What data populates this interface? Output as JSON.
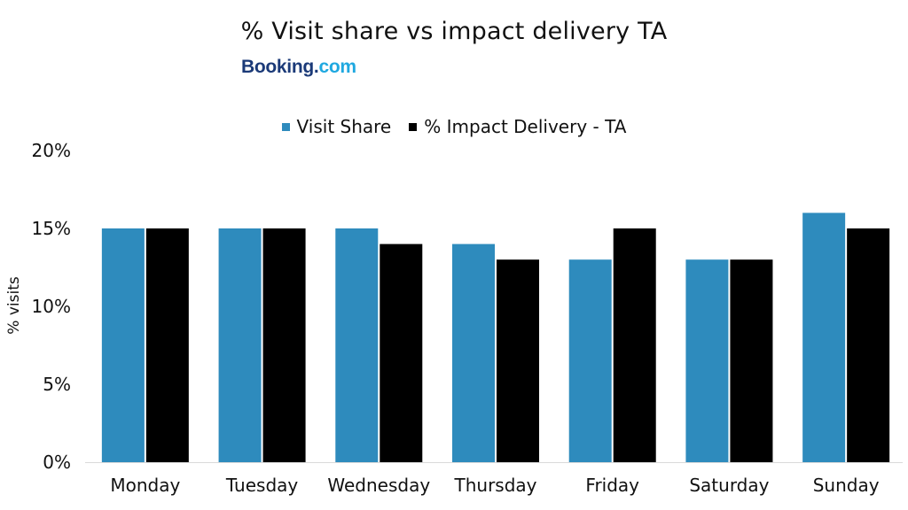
{
  "chart_data": {
    "type": "bar",
    "title": "% Visit share vs impact delivery TA",
    "xlabel": "",
    "ylabel": "% visits",
    "ylim": [
      0,
      20
    ],
    "y_ticks": [
      0,
      5,
      10,
      15,
      20
    ],
    "y_tick_labels": [
      "0%",
      "5%",
      "10%",
      "15%",
      "20%"
    ],
    "categories": [
      "Monday",
      "Tuesday",
      "Wednesday",
      "Thursday",
      "Friday",
      "Saturday",
      "Sunday"
    ],
    "series": [
      {
        "name": "Visit Share",
        "color": "#2e8bbd",
        "values": [
          15,
          15,
          15,
          14,
          13,
          13,
          16
        ]
      },
      {
        "name": "% Impact Delivery - TA",
        "color": "#000000",
        "values": [
          15,
          15,
          14,
          13,
          15,
          13,
          15
        ]
      }
    ],
    "grid": false,
    "legend_position": "top-center"
  },
  "logo": {
    "main": "Booking",
    "dot": ".",
    "tld": "com"
  }
}
